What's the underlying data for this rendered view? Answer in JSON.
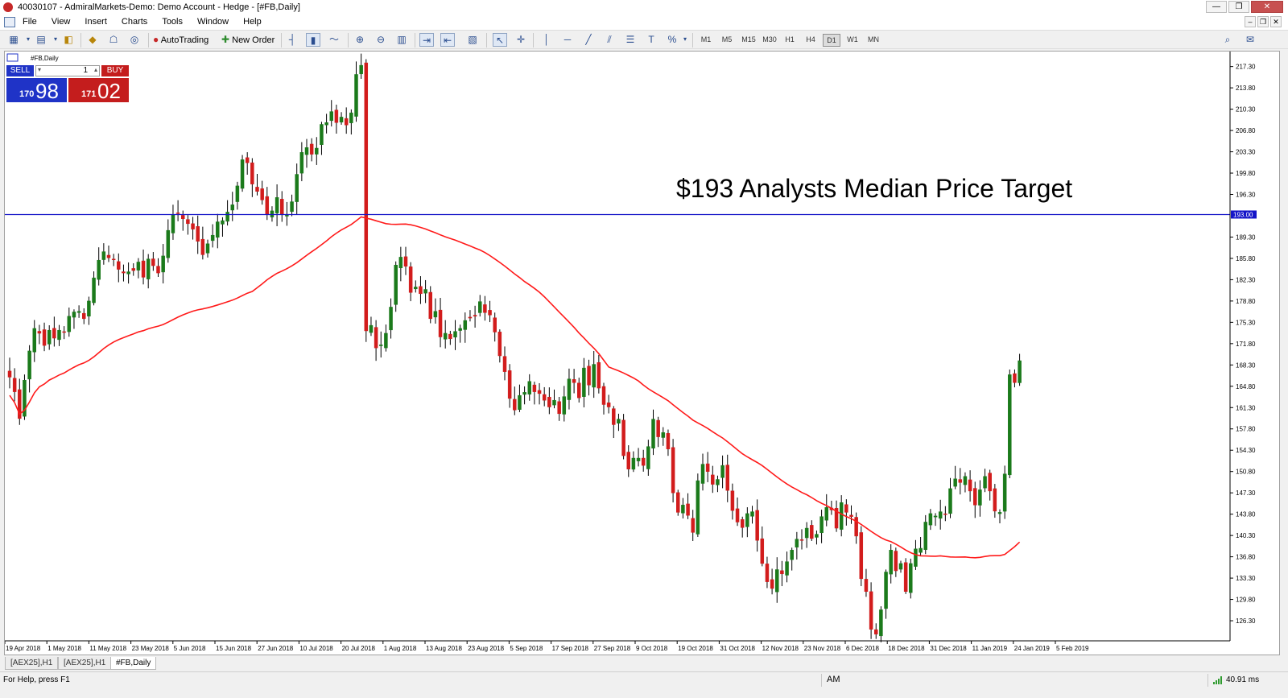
{
  "window": {
    "title": "40030107 - AdmiralMarkets-Demo: Demo Account - Hedge - [#FB,Daily]",
    "controls": [
      "—",
      "❐",
      "✕"
    ]
  },
  "menu": {
    "items": [
      "File",
      "View",
      "Insert",
      "Charts",
      "Tools",
      "Window",
      "Help"
    ],
    "mdi_controls": [
      "–",
      "❐",
      "✕"
    ]
  },
  "toolbar": {
    "autotrading_label": "AutoTrading",
    "new_order_label": "New Order",
    "timeframes": [
      "M1",
      "M5",
      "M15",
      "M30",
      "H1",
      "H4",
      "D1",
      "W1",
      "MN"
    ],
    "active_timeframe": "D1"
  },
  "one_click": {
    "sell_label": "SELL",
    "buy_label": "BUY",
    "lot": "1",
    "sell_price_small": "170",
    "sell_price_big": "98",
    "buy_price_small": "171",
    "buy_price_big": "02"
  },
  "chart": {
    "symbol_label": "#FB,Daily",
    "annotation": "$193 Analysts Median Price Target",
    "target_label": "193.00",
    "colors": {
      "up": "#1b7a1b",
      "down": "#d21c1c",
      "ma": "#ff1a1a",
      "hline": "#1414c8",
      "axis": "#000000"
    }
  },
  "chart_data": {
    "type": "candlestick",
    "y_ticks": [
      "217.30",
      "213.80",
      "210.30",
      "206.80",
      "203.30",
      "199.80",
      "196.30",
      "189.30",
      "185.80",
      "182.30",
      "178.80",
      "175.30",
      "171.80",
      "168.30",
      "164.80",
      "161.30",
      "157.80",
      "154.30",
      "150.80",
      "147.30",
      "143.80",
      "140.30",
      "136.80",
      "133.30",
      "129.80",
      "126.30"
    ],
    "ylim": [
      123.0,
      219.5
    ],
    "x_ticks": [
      "19 Apr 2018",
      "1 May 2018",
      "11 May 2018",
      "23 May 2018",
      "5 Jun 2018",
      "15 Jun 2018",
      "27 Jun 2018",
      "10 Jul 2018",
      "20 Jul 2018",
      "1 Aug 2018",
      "13 Aug 2018",
      "23 Aug 2018",
      "5 Sep 2018",
      "17 Sep 2018",
      "27 Sep 2018",
      "9 Oct 2018",
      "19 Oct 2018",
      "31 Oct 2018",
      "12 Nov 2018",
      "23 Nov 2018",
      "6 Dec 2018",
      "18 Dec 2018",
      "31 Dec 2018",
      "11 Jan 2019",
      "24 Jan 2019",
      "5 Feb 2019"
    ],
    "horizontal_line": 193.0,
    "close": [
      166.3,
      163.9,
      159.5,
      165.8,
      170.6,
      174.3,
      173.5,
      171.5,
      174.0,
      172.7,
      174.0,
      173.7,
      176.3,
      177.0,
      177.1,
      175.9,
      178.8,
      182.6,
      185.5,
      186.9,
      185.9,
      185.6,
      184.0,
      183.4,
      183.6,
      183.8,
      185.2,
      182.7,
      185.7,
      184.6,
      183.4,
      186.2,
      190.4,
      192.9,
      193.2,
      192.3,
      191.5,
      190.6,
      188.6,
      186.4,
      188.2,
      189.6,
      191.8,
      192.0,
      193.4,
      194.6,
      197.7,
      202.0,
      201.5,
      198.0,
      196.8,
      195.4,
      193.0,
      193.6,
      195.8,
      193.1,
      192.9,
      195.1,
      199.6,
      203.2,
      204.0,
      202.9,
      203.9,
      207.8,
      208.1,
      209.9,
      208.1,
      209.0,
      207.7,
      209.7,
      216.0,
      217.5,
      173.9,
      174.8,
      171.1,
      171.6,
      173.5,
      177.8,
      184.7,
      186.0,
      184.5,
      180.2,
      181.1,
      180.0,
      180.7,
      175.9,
      177.1,
      172.9,
      173.5,
      172.6,
      173.8,
      174.3,
      175.6,
      176.0,
      176.3,
      178.7,
      176.9,
      176.5,
      173.7,
      169.8,
      167.2,
      162.8,
      160.9,
      163.3,
      163.8,
      165.6,
      163.9,
      163.6,
      162.5,
      161.4,
      162.5,
      160.3,
      163.1,
      166.0,
      165.4,
      162.9,
      167.8,
      165.0,
      168.4,
      164.5,
      161.8,
      161.4,
      158.5,
      159.4,
      153.4,
      151.2,
      153.0,
      153.0,
      151.8,
      154.9,
      159.4,
      156.5,
      157.2,
      154.5,
      147.3,
      144.1,
      145.3,
      143.6,
      140.8,
      149.3,
      152.0,
      150.8,
      148.7,
      149.5,
      151.8,
      147.7,
      144.4,
      142.5,
      141.6,
      143.9,
      144.2,
      139.5,
      135.7,
      132.7,
      131.6,
      134.7,
      134.0,
      136.0,
      137.9,
      139.7,
      139.6,
      141.5,
      139.8,
      140.5,
      143.4,
      144.9,
      144.5,
      141.5,
      145.7,
      144.1,
      143.4,
      140.2,
      133.2,
      131.1,
      124.9,
      124.1,
      128.1,
      134.3,
      137.9,
      134.5,
      135.7,
      131.1,
      135.7,
      138.1,
      138.2,
      142.5,
      143.9,
      143.5,
      144.2,
      143.8,
      148.0,
      149.6,
      149.0,
      150.0,
      147.6,
      145.3,
      147.8,
      150.0,
      147.6,
      144.3,
      144.1,
      150.4,
      166.7,
      165.4,
      169.0
    ]
  }
}
